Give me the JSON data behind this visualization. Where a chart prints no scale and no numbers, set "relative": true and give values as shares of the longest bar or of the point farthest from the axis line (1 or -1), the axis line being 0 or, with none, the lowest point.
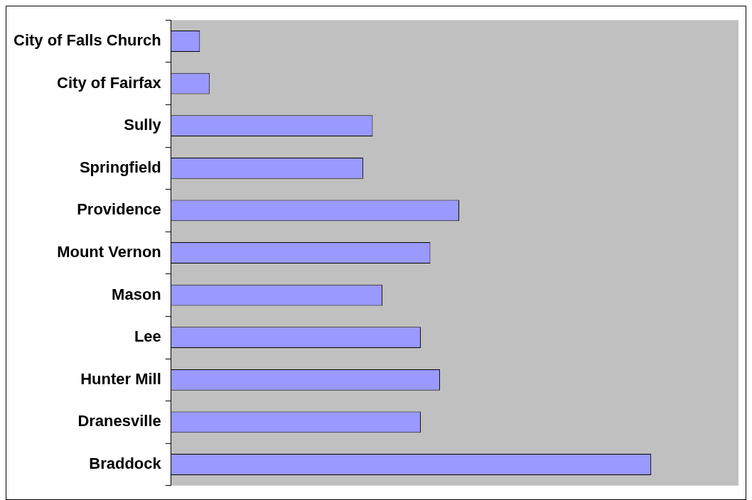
{
  "chart_data": {
    "type": "bar",
    "orientation": "horizontal",
    "relative": true,
    "categories": [
      "City of Falls Church",
      "City of Fairfax",
      "Sully",
      "Springfield",
      "Providence",
      "Mount Vernon",
      "Mason",
      "Lee",
      "Hunter Mill",
      "Dranesville",
      "Braddock"
    ],
    "values": [
      0.06,
      0.08,
      0.42,
      0.4,
      0.6,
      0.54,
      0.44,
      0.52,
      0.56,
      0.52,
      1
    ],
    "color": "#9999ff",
    "legend": false
  }
}
